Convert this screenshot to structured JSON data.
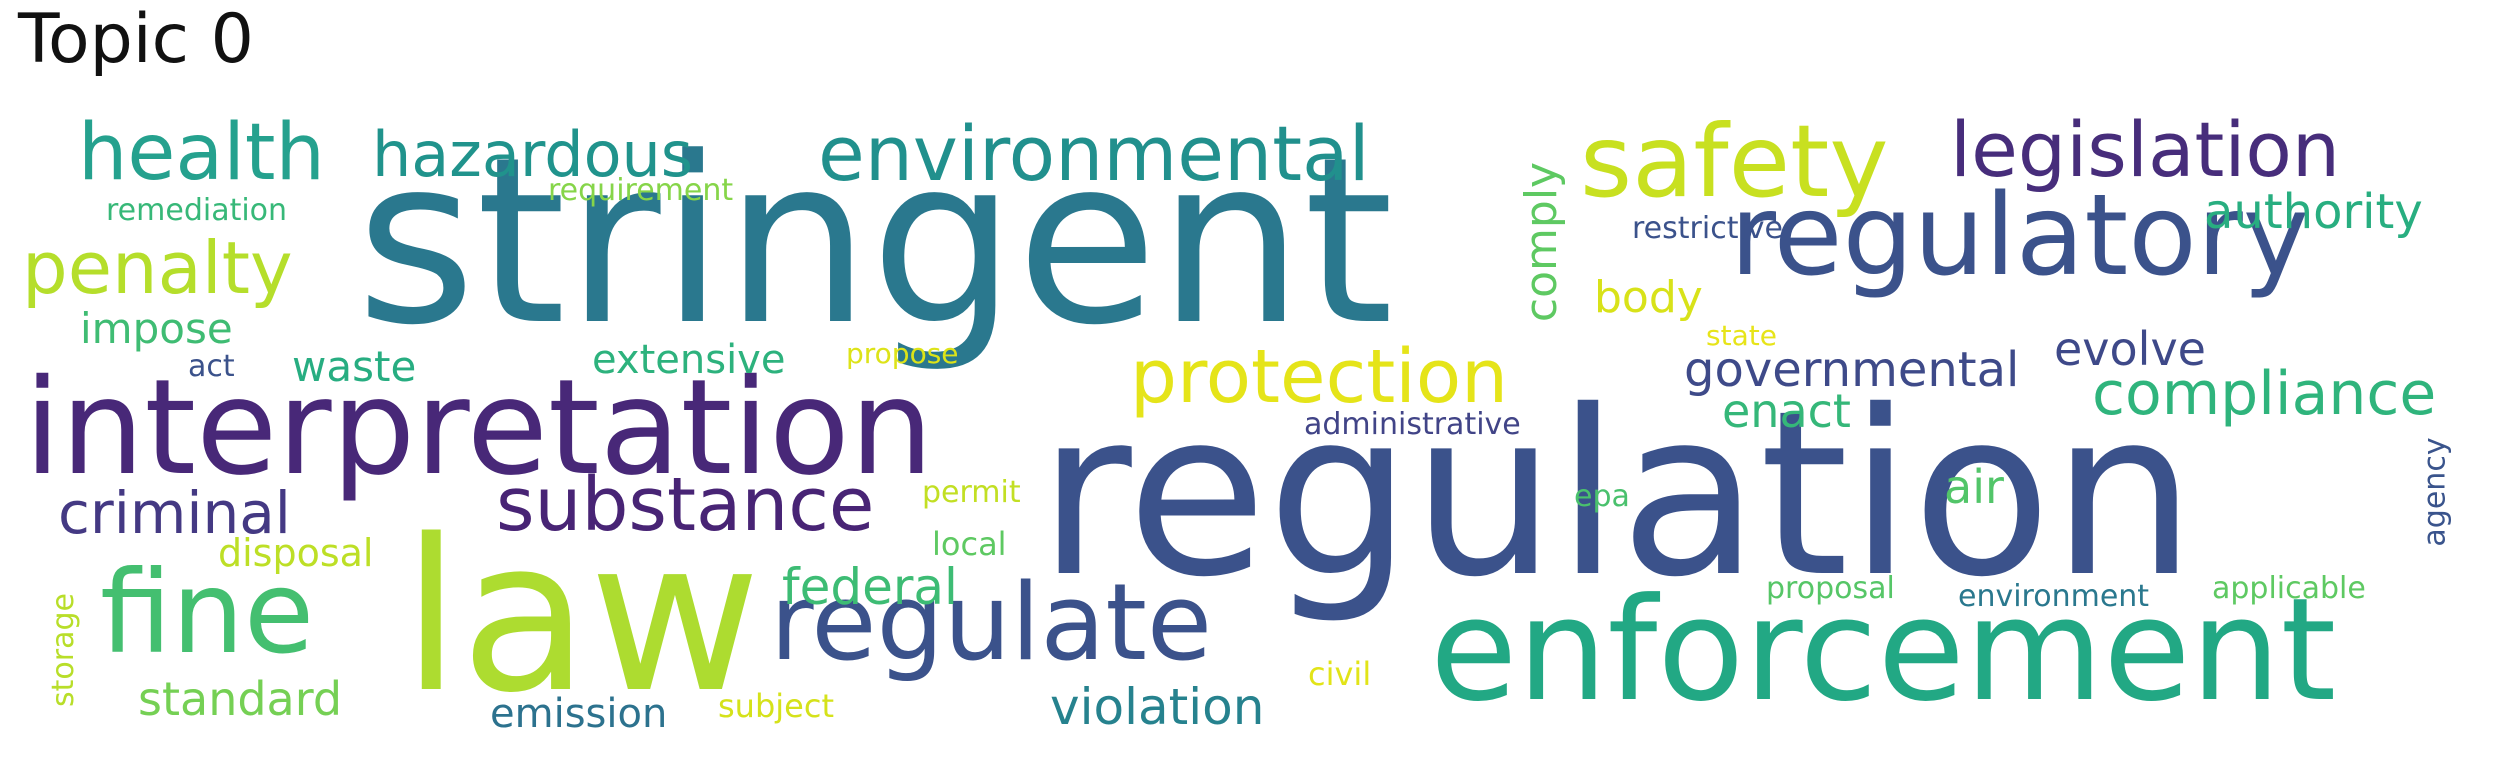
{
  "title": "Topic 0",
  "words": [
    {
      "text": "stringent",
      "color": "#2a788e"
    },
    {
      "text": "regulation",
      "color": "#3b528b"
    },
    {
      "text": "law",
      "color": "#addc30"
    },
    {
      "text": "enforcement",
      "color": "#22a884"
    },
    {
      "text": "interpretation",
      "color": "#482878"
    },
    {
      "text": "regulatory",
      "color": "#3b528b"
    },
    {
      "text": "regulate",
      "color": "#3b528b"
    },
    {
      "text": "safety",
      "color": "#c8e020"
    },
    {
      "text": "environmental",
      "color": "#21908d"
    },
    {
      "text": "legislation",
      "color": "#472d7b"
    },
    {
      "text": "health",
      "color": "#25a18e"
    },
    {
      "text": "protection",
      "color": "#e5e419"
    },
    {
      "text": "substance",
      "color": "#482475"
    },
    {
      "text": "fine",
      "color": "#44bf70"
    },
    {
      "text": "penalty",
      "color": "#b5de2b"
    },
    {
      "text": "hazardous",
      "color": "#20938c"
    },
    {
      "text": "compliance",
      "color": "#2fb47c"
    },
    {
      "text": "criminal",
      "color": "#443983"
    },
    {
      "text": "authority",
      "color": "#28ae80"
    },
    {
      "text": "governmental",
      "color": "#3e4a89"
    },
    {
      "text": "federal",
      "color": "#3dbc74"
    },
    {
      "text": "violation",
      "color": "#26828e"
    },
    {
      "text": "standard",
      "color": "#75d054"
    },
    {
      "text": "evolve",
      "color": "#3e4989"
    },
    {
      "text": "comply",
      "color": "#5ec962"
    },
    {
      "text": "enact",
      "color": "#35b779"
    },
    {
      "text": "body",
      "color": "#d8e219"
    },
    {
      "text": "waste",
      "color": "#27ad81"
    },
    {
      "text": "impose",
      "color": "#3fbc73"
    },
    {
      "text": "extensive",
      "color": "#2db27d"
    },
    {
      "text": "emission",
      "color": "#2c728e"
    },
    {
      "text": "disposal",
      "color": "#bddf26"
    },
    {
      "text": "air",
      "color": "#52c569"
    },
    {
      "text": "administrative",
      "color": "#414487"
    },
    {
      "text": "restrictive",
      "color": "#3b528b"
    },
    {
      "text": "remediation",
      "color": "#37b878"
    },
    {
      "text": "requirement",
      "color": "#86d549"
    },
    {
      "text": "environment",
      "color": "#2a788e"
    },
    {
      "text": "proposal",
      "color": "#56c667"
    },
    {
      "text": "applicable",
      "color": "#5ec962"
    },
    {
      "text": "agency",
      "color": "#3a548c"
    },
    {
      "text": "local",
      "color": "#5ec962"
    },
    {
      "text": "subject",
      "color": "#d5e21a"
    },
    {
      "text": "permit",
      "color": "#c2df23"
    },
    {
      "text": "propose",
      "color": "#dde318"
    },
    {
      "text": "state",
      "color": "#e7e419"
    },
    {
      "text": "act",
      "color": "#3b528b"
    },
    {
      "text": "epa",
      "color": "#4ac16d"
    },
    {
      "text": "storage",
      "color": "#b8de29"
    },
    {
      "text": "civil",
      "color": "#e2e418"
    }
  ]
}
